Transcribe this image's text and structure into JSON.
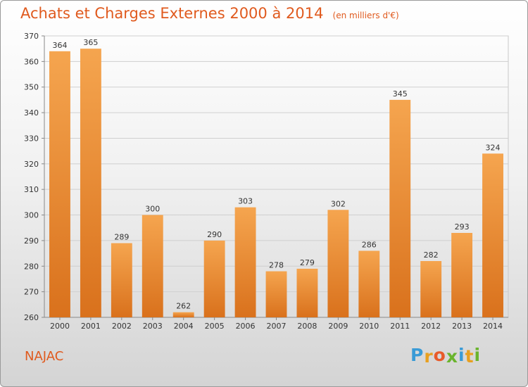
{
  "chart_data": {
    "type": "bar",
    "title": "Achats et Charges Externes 2000 à 2014",
    "subtitle": "(en milliers d'€)",
    "categories": [
      "2000",
      "2001",
      "2002",
      "2003",
      "2004",
      "2005",
      "2006",
      "2007",
      "2008",
      "2009",
      "2010",
      "2011",
      "2012",
      "2013",
      "2014"
    ],
    "values": [
      364,
      365,
      289,
      300,
      262,
      290,
      303,
      278,
      279,
      302,
      286,
      345,
      282,
      293,
      324
    ],
    "ylim": [
      260,
      370
    ],
    "yticks": [
      260,
      270,
      280,
      290,
      300,
      310,
      320,
      330,
      340,
      350,
      360,
      370
    ],
    "grid": true,
    "bar_color_top": "#f5a54f",
    "bar_color_bottom": "#d9711c",
    "title_color": "#e05a1e"
  },
  "location": "NAJAC",
  "logo": {
    "letters": [
      "P",
      "r",
      "o",
      "x",
      "i",
      "t",
      "i"
    ],
    "colors": [
      "#3a9bd6",
      "#e8a020",
      "#e85a2a",
      "#6ab42d",
      "#3a9bd6",
      "#e8a020",
      "#6ab42d"
    ]
  }
}
